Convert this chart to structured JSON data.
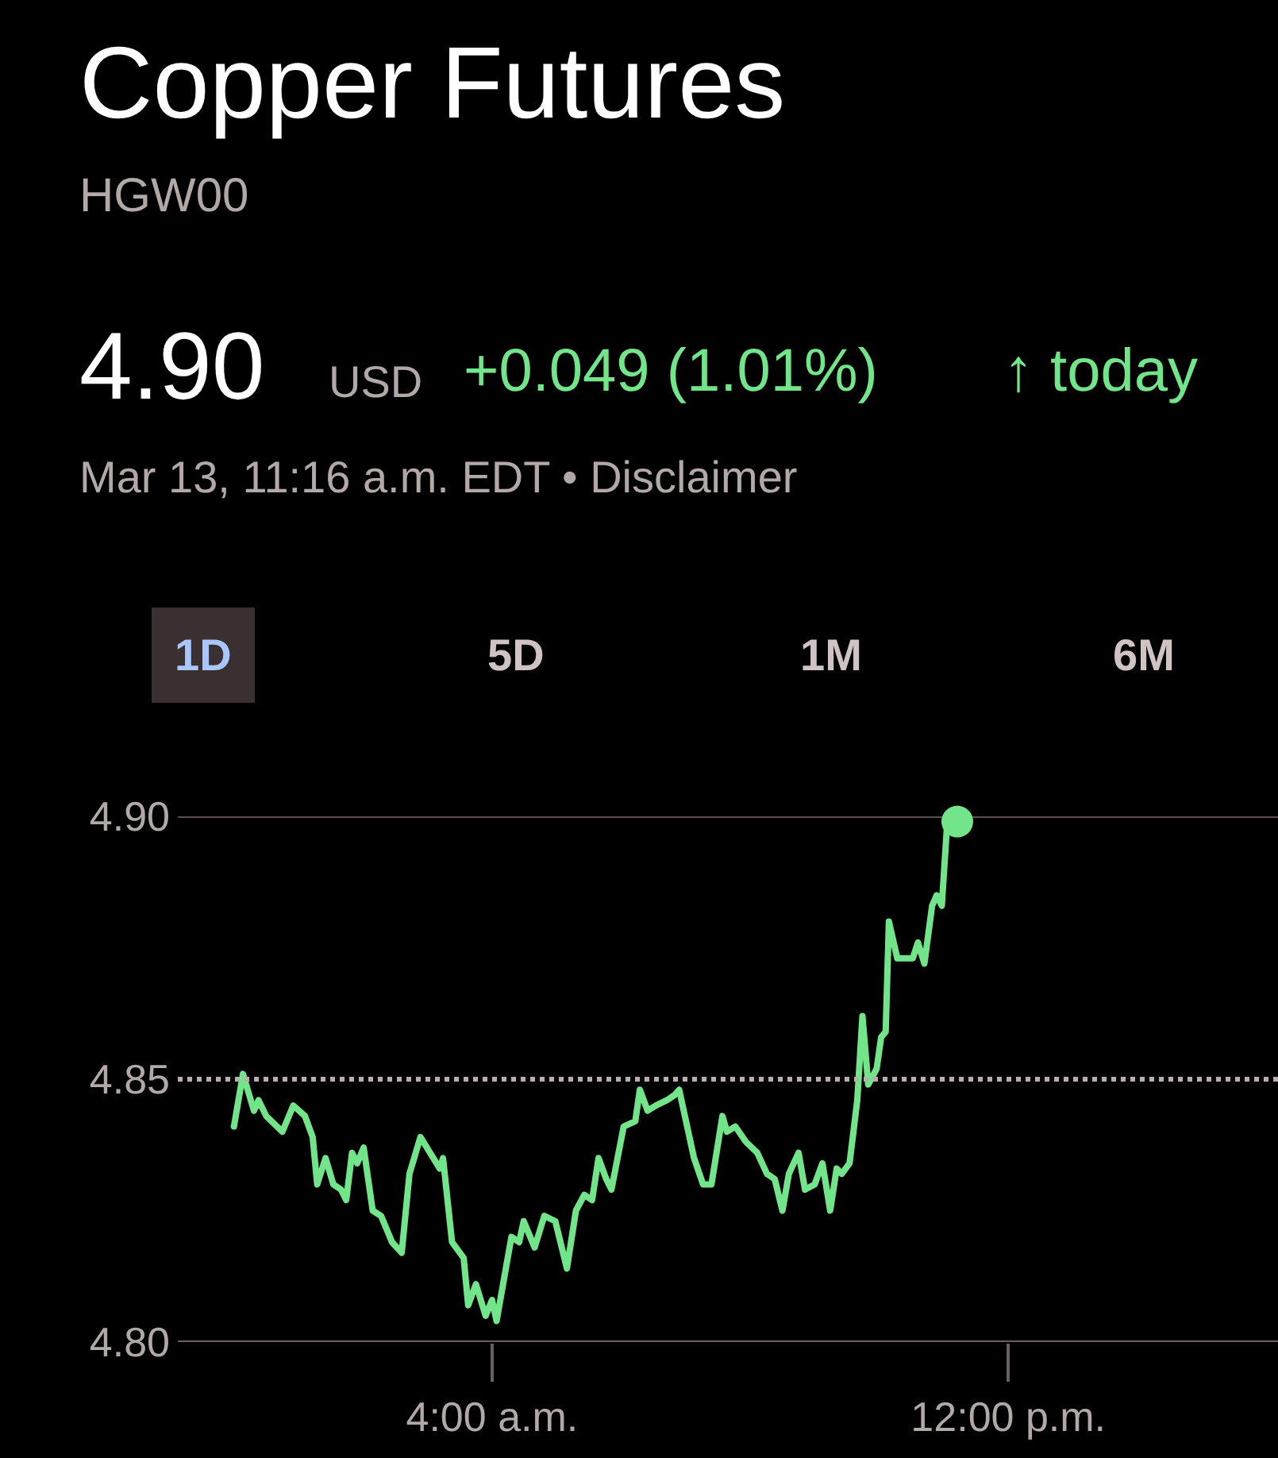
{
  "chart_data": {
    "type": "line",
    "title": "Copper Futures",
    "subtitle": "HGW00",
    "annotations": [
      "4.90",
      "USD",
      "+0.049 (1.01%)",
      "↑ today",
      "Mar 13, 11:16 a.m. EDT • Disclaimer",
      "1D",
      "5D",
      "1M",
      "6M"
    ],
    "series": [
      {
        "color": "#72e58a",
        "x": [
          0.0,
          0.14,
          0.31,
          0.38,
          0.5,
          0.75,
          0.92,
          1.1,
          1.22,
          1.29,
          1.42,
          1.54,
          1.66,
          1.74,
          1.83,
          1.91,
          2.01,
          2.15,
          2.28,
          2.45,
          2.6,
          2.72,
          2.89,
          3.19,
          3.24,
          3.38,
          3.56,
          3.63,
          3.75,
          3.9,
          4.0,
          4.07,
          4.3,
          4.42,
          4.49,
          4.66,
          4.81,
          4.98,
          5.16,
          5.3,
          5.43,
          5.55,
          5.65,
          5.77,
          5.85,
          6.04,
          6.22,
          6.29,
          6.41,
          6.54,
          6.71,
          6.83,
          6.9,
          7.13,
          7.27,
          7.4,
          7.57,
          7.64,
          7.77,
          7.94,
          8.11,
          8.26,
          8.38,
          8.5,
          8.6,
          8.75,
          8.85,
          9.0,
          9.12,
          9.24,
          9.34,
          9.42,
          9.54,
          9.66,
          9.74,
          9.83,
          9.96,
          10.03,
          10.1,
          10.15,
          10.28,
          10.4,
          10.52,
          10.6,
          10.7,
          10.82,
          10.89,
          10.97,
          11.06,
          11.21
        ],
        "values": [
          4.841,
          4.851,
          4.844,
          4.846,
          4.843,
          4.84,
          4.845,
          4.843,
          4.839,
          4.83,
          4.835,
          4.83,
          4.829,
          4.827,
          4.836,
          4.834,
          4.837,
          4.825,
          4.824,
          4.819,
          4.817,
          4.832,
          4.839,
          4.833,
          4.835,
          4.819,
          4.816,
          4.807,
          4.811,
          4.805,
          4.808,
          4.804,
          4.82,
          4.819,
          4.823,
          4.818,
          4.824,
          4.823,
          4.814,
          4.825,
          4.828,
          4.827,
          4.835,
          4.831,
          4.829,
          4.841,
          4.842,
          4.848,
          4.844,
          4.845,
          4.846,
          4.847,
          4.848,
          4.835,
          4.83,
          4.83,
          4.843,
          4.84,
          4.841,
          4.838,
          4.836,
          4.832,
          4.831,
          4.825,
          4.832,
          4.836,
          4.829,
          4.83,
          4.834,
          4.825,
          4.833,
          4.832,
          4.834,
          4.846,
          4.862,
          4.849,
          4.852,
          4.858,
          4.859,
          4.88,
          4.873,
          4.873,
          4.873,
          4.876,
          4.872,
          4.883,
          4.885,
          4.883,
          4.9,
          4.899
        ]
      }
    ],
    "xlim": [
      -0.87,
      16.18
    ],
    "xticks": [
      {
        "value": 4,
        "label": "4:00 a.m."
      },
      {
        "value": 12,
        "label": "12:00 p.m."
      }
    ],
    "ylim": [
      4.8,
      4.9
    ],
    "yticks": [
      {
        "value": 4.8,
        "label": "4.80"
      },
      {
        "value": 4.85,
        "label": "4.85"
      },
      {
        "value": 4.9,
        "label": "4.90"
      }
    ],
    "ref_lines": [
      {
        "axis": "y",
        "value": 4.85,
        "color": "#b8aeae",
        "line_style": "dotted"
      }
    ],
    "marker": "none",
    "line_style": "solid"
  }
}
